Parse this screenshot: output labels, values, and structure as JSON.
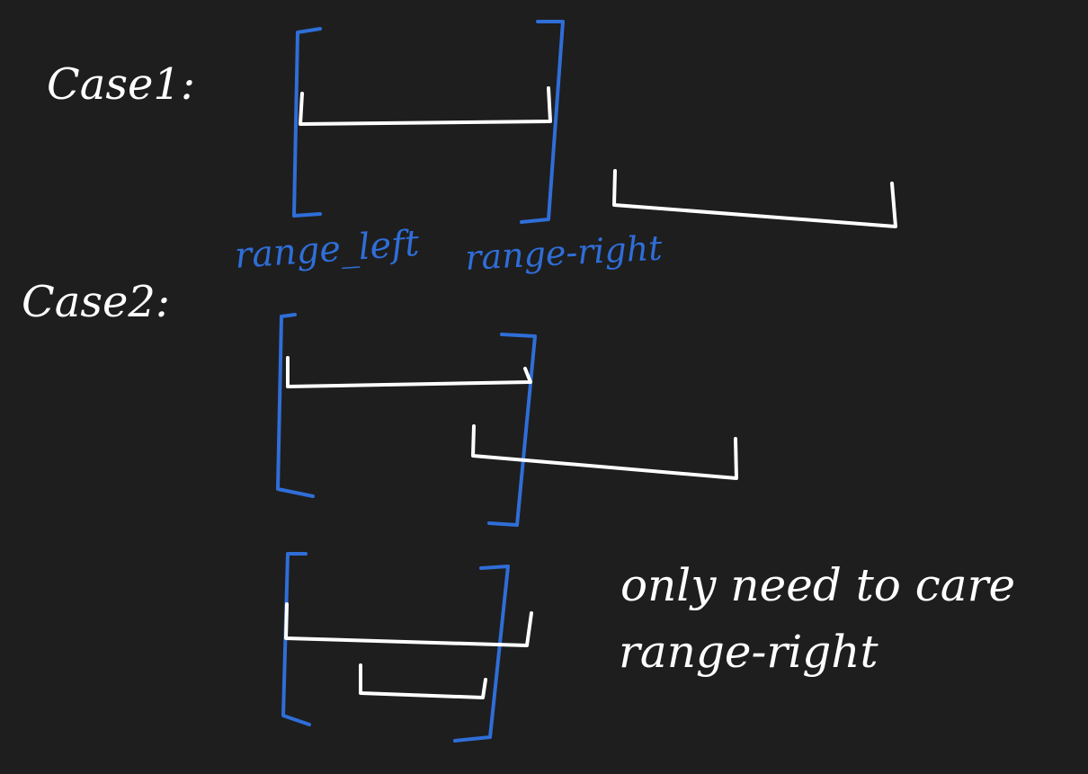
{
  "labels": {
    "case1": "Case1:",
    "case2": "Case2:",
    "range_left": "range_left",
    "range_right": "range-right",
    "note_line1": "only need to care",
    "note_line2": "range-right"
  },
  "colors": {
    "background": "#1e1e1e",
    "interval_ink": "#ffffff",
    "range_ink": "#2f6ed8"
  }
}
